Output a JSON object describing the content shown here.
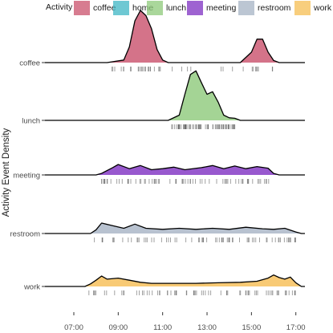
{
  "chart_data": {
    "type": "area",
    "subtype": "ridgeline-density",
    "title": "",
    "xlabel": "",
    "ylabel": "Activity Event Density",
    "xlim": [
      "07:00",
      "17:30"
    ],
    "xticks": [
      "07:00",
      "09:00",
      "11:00",
      "13:00",
      "15:00",
      "17:00"
    ],
    "grid": false,
    "legend": {
      "title": "Activity",
      "position": "top",
      "entries": [
        {
          "label": "coffee",
          "color": "#c9506b"
        },
        {
          "label": "home",
          "color": "#3db5c4"
        },
        {
          "label": "lunch",
          "color": "#8dc97a"
        },
        {
          "label": "meeting",
          "color": "#7e2fc2"
        },
        {
          "label": "restroom",
          "color": "#a6b3c4"
        },
        {
          "label": "work",
          "color": "#f6bd52"
        }
      ]
    },
    "series": [
      {
        "name": "coffee",
        "color": "#c9506b",
        "density": [
          [
            "08:30",
            0
          ],
          [
            "09:15",
            0.05
          ],
          [
            "09:30",
            0.3
          ],
          [
            "09:45",
            0.8
          ],
          [
            "10:00",
            1.0
          ],
          [
            "10:15",
            0.9
          ],
          [
            "10:30",
            0.65
          ],
          [
            "10:45",
            0.25
          ],
          [
            "11:00",
            0.05
          ],
          [
            "11:15",
            0
          ],
          [
            "14:30",
            0
          ],
          [
            "15:00",
            0.2
          ],
          [
            "15:15",
            0.45
          ],
          [
            "15:30",
            0.45
          ],
          [
            "15:45",
            0.2
          ],
          [
            "16:00",
            0.04
          ],
          [
            "16:15",
            0
          ]
        ]
      },
      {
        "name": "lunch",
        "color": "#8dc97a",
        "density": [
          [
            "11:15",
            0
          ],
          [
            "11:45",
            0.1
          ],
          [
            "12:00",
            0.5
          ],
          [
            "12:15",
            0.88
          ],
          [
            "12:30",
            0.95
          ],
          [
            "12:45",
            0.72
          ],
          [
            "13:00",
            0.5
          ],
          [
            "13:15",
            0.55
          ],
          [
            "13:30",
            0.35
          ],
          [
            "13:45",
            0.1
          ],
          [
            "14:00",
            0.05
          ],
          [
            "14:15",
            0.04
          ],
          [
            "14:30",
            0
          ]
        ]
      },
      {
        "name": "meeting",
        "color": "#7e2fc2",
        "density": [
          [
            "08:00",
            0
          ],
          [
            "08:15",
            0.03
          ],
          [
            "08:45",
            0.14
          ],
          [
            "09:00",
            0.2
          ],
          [
            "09:30",
            0.12
          ],
          [
            "10:00",
            0.18
          ],
          [
            "10:30",
            0.1
          ],
          [
            "11:00",
            0.12
          ],
          [
            "11:30",
            0.15
          ],
          [
            "12:00",
            0.1
          ],
          [
            "12:45",
            0.14
          ],
          [
            "13:15",
            0.18
          ],
          [
            "13:45",
            0.12
          ],
          [
            "14:15",
            0.17
          ],
          [
            "14:45",
            0.12
          ],
          [
            "15:15",
            0.16
          ],
          [
            "15:45",
            0.13
          ],
          [
            "16:00",
            0.03
          ],
          [
            "16:15",
            0
          ]
        ]
      },
      {
        "name": "restroom",
        "color": "#a6b3c4",
        "density": [
          [
            "07:45",
            0
          ],
          [
            "08:00",
            0.07
          ],
          [
            "08:15",
            0.2
          ],
          [
            "08:45",
            0.15
          ],
          [
            "09:15",
            0.1
          ],
          [
            "09:45",
            0.18
          ],
          [
            "10:15",
            0.1
          ],
          [
            "11:00",
            0.08
          ],
          [
            "11:45",
            0.1
          ],
          [
            "12:30",
            0.08
          ],
          [
            "13:15",
            0.1
          ],
          [
            "14:00",
            0.08
          ],
          [
            "14:45",
            0.12
          ],
          [
            "15:30",
            0.09
          ],
          [
            "16:00",
            0.08
          ],
          [
            "16:30",
            0.1
          ],
          [
            "17:00",
            0.03
          ],
          [
            "17:15",
            0
          ]
        ]
      },
      {
        "name": "work",
        "color": "#f6bd52",
        "density": [
          [
            "07:30",
            0
          ],
          [
            "07:45",
            0.05
          ],
          [
            "08:00",
            0.12
          ],
          [
            "08:15",
            0.2
          ],
          [
            "08:30",
            0.14
          ],
          [
            "09:00",
            0.16
          ],
          [
            "09:30",
            0.12
          ],
          [
            "10:00",
            0.08
          ],
          [
            "10:30",
            0.06
          ],
          [
            "11:30",
            0.06
          ],
          [
            "12:30",
            0.06
          ],
          [
            "13:30",
            0.07
          ],
          [
            "14:30",
            0.08
          ],
          [
            "15:15",
            0.1
          ],
          [
            "15:45",
            0.16
          ],
          [
            "16:00",
            0.22
          ],
          [
            "16:15",
            0.17
          ],
          [
            "16:30",
            0.14
          ],
          [
            "16:45",
            0.18
          ],
          [
            "17:00",
            0.07
          ],
          [
            "17:15",
            0
          ]
        ]
      }
    ]
  }
}
